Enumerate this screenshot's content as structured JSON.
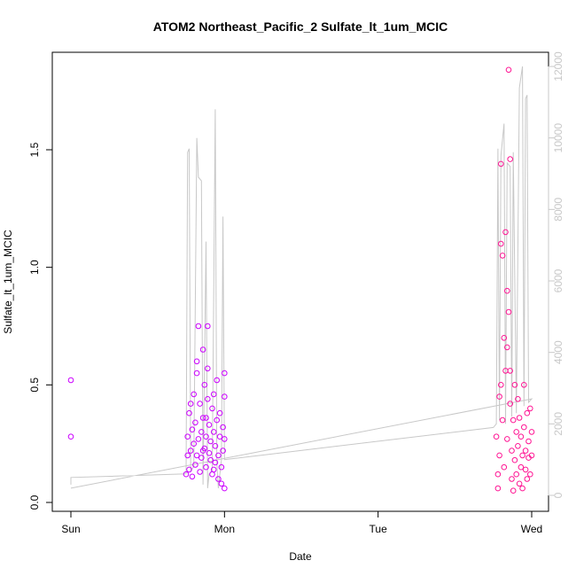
{
  "chart_data": {
    "type": "scatter",
    "title": "ATOM2 Northeast_Pacific_2 Sulfate_lt_1um_MCIC",
    "xlabel": "Date",
    "ylabel": "Sulfate_lt_1um_MCIC",
    "x_ticks": [
      "Sun",
      "Mon",
      "Tue",
      "Wed"
    ],
    "xlim": [
      0,
      3.1
    ],
    "ylim": [
      0,
      1.9
    ],
    "y_ticks": [
      0.0,
      0.5,
      1.0,
      1.5
    ],
    "y2_ticks": [
      0,
      2000,
      4000,
      6000,
      8000,
      10000,
      12000
    ],
    "y2lim": [
      -200,
      12300
    ],
    "grid": false,
    "series": [
      {
        "color": "#cc00ff",
        "marker": "circle-open",
        "points": [
          [
            0.0,
            0.52
          ],
          [
            0.0,
            0.28
          ],
          [
            0.75,
            0.12
          ],
          [
            0.76,
            0.2
          ],
          [
            0.76,
            0.28
          ],
          [
            0.77,
            0.14
          ],
          [
            0.77,
            0.38
          ],
          [
            0.78,
            0.22
          ],
          [
            0.78,
            0.42
          ],
          [
            0.79,
            0.31
          ],
          [
            0.79,
            0.11
          ],
          [
            0.8,
            0.25
          ],
          [
            0.8,
            0.46
          ],
          [
            0.81,
            0.16
          ],
          [
            0.81,
            0.34
          ],
          [
            0.82,
            0.2
          ],
          [
            0.82,
            0.55
          ],
          [
            0.83,
            0.75
          ],
          [
            0.83,
            0.27
          ],
          [
            0.84,
            0.13
          ],
          [
            0.84,
            0.42
          ],
          [
            0.85,
            0.3
          ],
          [
            0.85,
            0.19
          ],
          [
            0.86,
            0.65
          ],
          [
            0.86,
            0.36
          ],
          [
            0.87,
            0.23
          ],
          [
            0.87,
            0.5
          ],
          [
            0.88,
            0.15
          ],
          [
            0.88,
            0.28
          ],
          [
            0.89,
            0.44
          ],
          [
            0.89,
            0.57
          ],
          [
            0.9,
            0.21
          ],
          [
            0.9,
            0.33
          ],
          [
            0.91,
            0.18
          ],
          [
            0.91,
            0.26
          ],
          [
            0.92,
            0.4
          ],
          [
            0.92,
            0.12
          ],
          [
            0.93,
            0.3
          ],
          [
            0.93,
            0.46
          ],
          [
            0.94,
            0.24
          ],
          [
            0.94,
            0.17
          ],
          [
            0.95,
            0.35
          ],
          [
            0.95,
            0.52
          ],
          [
            0.96,
            0.2
          ],
          [
            0.96,
            0.1
          ],
          [
            0.97,
            0.28
          ],
          [
            0.97,
            0.38
          ],
          [
            0.98,
            0.15
          ],
          [
            0.98,
            0.08
          ],
          [
            0.99,
            0.22
          ],
          [
            0.99,
            0.32
          ],
          [
            1.0,
            0.55
          ],
          [
            1.0,
            0.45
          ],
          [
            1.0,
            0.06
          ],
          [
            1.0,
            0.27
          ],
          [
            0.82,
            0.6
          ],
          [
            0.86,
            0.22
          ],
          [
            0.89,
            0.75
          ],
          [
            0.93,
            0.14
          ],
          [
            0.88,
            0.36
          ]
        ]
      },
      {
        "color": "#ff1493",
        "marker": "circle-open",
        "points": [
          [
            2.77,
            0.28
          ],
          [
            2.78,
            0.12
          ],
          [
            2.78,
            0.06
          ],
          [
            2.79,
            0.45
          ],
          [
            2.79,
            0.2
          ],
          [
            2.8,
            1.1
          ],
          [
            2.8,
            0.5
          ],
          [
            2.81,
            0.35
          ],
          [
            2.81,
            1.05
          ],
          [
            2.82,
            0.7
          ],
          [
            2.82,
            0.15
          ],
          [
            2.83,
            1.15
          ],
          [
            2.83,
            0.56
          ],
          [
            2.84,
            0.9
          ],
          [
            2.84,
            0.27
          ],
          [
            2.85,
            0.81
          ],
          [
            2.85,
            1.84
          ],
          [
            2.86,
            1.46
          ],
          [
            2.86,
            0.42
          ],
          [
            2.87,
            0.22
          ],
          [
            2.87,
            0.1
          ],
          [
            2.88,
            0.35
          ],
          [
            2.88,
            0.05
          ],
          [
            2.89,
            0.5
          ],
          [
            2.89,
            0.18
          ],
          [
            2.9,
            0.3
          ],
          [
            2.9,
            0.12
          ],
          [
            2.91,
            0.44
          ],
          [
            2.91,
            0.24
          ],
          [
            2.92,
            0.08
          ],
          [
            2.92,
            0.36
          ],
          [
            2.93,
            0.15
          ],
          [
            2.93,
            0.28
          ],
          [
            2.94,
            0.2
          ],
          [
            2.94,
            0.06
          ],
          [
            2.95,
            0.32
          ],
          [
            2.95,
            0.5
          ],
          [
            2.96,
            0.14
          ],
          [
            2.96,
            0.22
          ],
          [
            2.97,
            0.1
          ],
          [
            2.97,
            0.38
          ],
          [
            2.98,
            0.19
          ],
          [
            2.98,
            0.26
          ],
          [
            2.99,
            0.12
          ],
          [
            2.99,
            0.4
          ],
          [
            3.0,
            0.2
          ],
          [
            3.0,
            0.3
          ],
          [
            2.8,
            1.44
          ],
          [
            2.86,
            0.56
          ],
          [
            2.84,
            0.66
          ]
        ]
      }
    ],
    "line_series": {
      "axis": "right",
      "color": "#c8c8c8",
      "points": [
        [
          0.0,
          300
        ],
        [
          0.0,
          500
        ],
        [
          0.75,
          600
        ],
        [
          0.76,
          9600
        ],
        [
          0.77,
          9700
        ],
        [
          0.78,
          700
        ],
        [
          0.8,
          800
        ],
        [
          0.82,
          10000
        ],
        [
          0.83,
          8900
        ],
        [
          0.85,
          8800
        ],
        [
          0.86,
          300
        ],
        [
          0.88,
          7100
        ],
        [
          0.89,
          200
        ],
        [
          0.9,
          600
        ],
        [
          0.92,
          700
        ],
        [
          0.94,
          10800
        ],
        [
          0.95,
          900
        ],
        [
          0.96,
          200
        ],
        [
          0.98,
          1000
        ],
        [
          0.99,
          7800
        ],
        [
          1.0,
          1000
        ],
        [
          2.75,
          1900
        ],
        [
          2.77,
          2000
        ],
        [
          2.78,
          9700
        ],
        [
          2.79,
          2100
        ],
        [
          2.8,
          9500
        ],
        [
          2.82,
          10400
        ],
        [
          2.83,
          2000
        ],
        [
          2.84,
          9300
        ],
        [
          2.86,
          9200
        ],
        [
          2.87,
          2200
        ],
        [
          2.88,
          9600
        ],
        [
          2.9,
          2300
        ],
        [
          2.92,
          11400
        ],
        [
          2.94,
          12000
        ],
        [
          2.95,
          2500
        ],
        [
          2.96,
          11100
        ],
        [
          2.97,
          11200
        ],
        [
          2.98,
          2600
        ],
        [
          3.0,
          2700
        ],
        [
          0.0,
          200
        ]
      ]
    }
  }
}
